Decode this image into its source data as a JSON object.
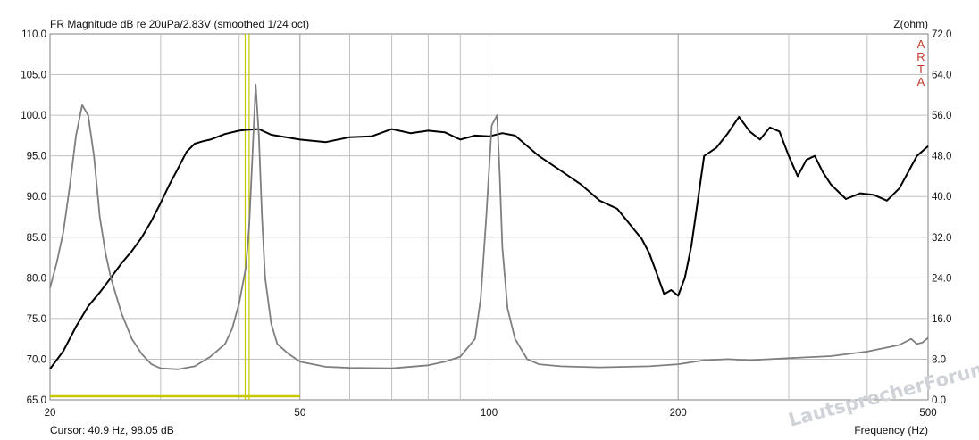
{
  "chart_data": {
    "type": "line",
    "title": "FR Magnitude dB re 20uPa/2.83V (smoothed 1/24 oct)",
    "xlabel": "Frequency (Hz)",
    "ylabel": "",
    "y2label": "Z(ohm)",
    "x_scale": "log",
    "xlim": [
      20,
      500
    ],
    "ylim": [
      65,
      110
    ],
    "y2lim": [
      0,
      72
    ],
    "grid": true,
    "x_ticks": [
      20,
      50,
      100,
      200,
      500
    ],
    "x_tick_labels": [
      "20",
      "50",
      "100",
      "200",
      "500"
    ],
    "x_minor_grid": [
      30,
      40,
      60,
      70,
      80,
      90,
      300,
      400
    ],
    "y_ticks": [
      65,
      70,
      75,
      80,
      85,
      90,
      95,
      100,
      105,
      110
    ],
    "y_tick_labels": [
      "65.0",
      "70.0",
      "75.0",
      "80.0",
      "85.0",
      "90.0",
      "95.0",
      "100.0",
      "105.0",
      "110.0"
    ],
    "y2_ticks": [
      0,
      8,
      16,
      24,
      32,
      40,
      48,
      56,
      64,
      72
    ],
    "y2_tick_labels": [
      "0.0",
      "8.0",
      "16.0",
      "24.0",
      "32.0",
      "40.0",
      "48.0",
      "56.0",
      "64.0",
      "72.0"
    ],
    "cursor_x": 40.9,
    "cursor_label": "Cursor: 40.9 Hz, 98.05 dB",
    "series": [
      {
        "axis": "left",
        "color": "#000000",
        "x": [
          20,
          21,
          22,
          23,
          24,
          25,
          26,
          27,
          28,
          29,
          30,
          31,
          32,
          33,
          34,
          35,
          36,
          38,
          40,
          41,
          43,
          45,
          50,
          55,
          60,
          65,
          70,
          75,
          80,
          85,
          90,
          95,
          100,
          105,
          110,
          120,
          130,
          140,
          150,
          160,
          170,
          175,
          180,
          185,
          190,
          195,
          200,
          205,
          210,
          220,
          230,
          240,
          250,
          260,
          270,
          280,
          290,
          300,
          310,
          320,
          330,
          340,
          350,
          370,
          390,
          410,
          430,
          450,
          480,
          500
        ],
        "y": [
          68.8,
          71.0,
          74.0,
          76.5,
          78.2,
          80.0,
          81.8,
          83.3,
          85.0,
          87.0,
          89.2,
          91.5,
          93.5,
          95.5,
          96.5,
          96.8,
          97.0,
          97.7,
          98.1,
          98.2,
          98.3,
          97.6,
          97.0,
          96.7,
          97.3,
          97.4,
          98.3,
          97.8,
          98.1,
          97.9,
          97.0,
          97.5,
          97.4,
          97.8,
          97.5,
          95.0,
          93.2,
          91.5,
          89.5,
          88.5,
          86.0,
          84.8,
          83.0,
          80.5,
          78.0,
          78.5,
          77.8,
          80.0,
          84.0,
          95.0,
          96.0,
          97.8,
          99.8,
          98.0,
          97.0,
          98.5,
          98.0,
          95.0,
          92.5,
          94.5,
          95.0,
          93.0,
          91.5,
          89.7,
          90.4,
          90.2,
          89.5,
          91.0,
          95.0,
          96.2
        ]
      },
      {
        "axis": "right",
        "color": "#7f7f7f",
        "x": [
          20,
          20.5,
          21,
          21.5,
          22,
          22.5,
          23,
          23.5,
          24,
          24.5,
          25,
          26,
          27,
          28,
          29,
          30,
          32,
          34,
          36,
          38,
          39,
          40,
          41,
          41.5,
          42,
          42.5,
          43,
          43.5,
          44,
          45,
          46,
          48,
          50,
          55,
          60,
          70,
          80,
          85,
          90,
          95,
          97,
          99,
          101,
          103,
          104,
          105,
          107,
          110,
          115,
          120,
          130,
          150,
          180,
          200,
          220,
          240,
          260,
          280,
          300,
          350,
          400,
          450,
          470,
          480,
          490,
          500
        ],
        "y": [
          22.0,
          27.0,
          33.0,
          42.0,
          52.0,
          58.0,
          56.0,
          48.0,
          36.0,
          29.0,
          24.0,
          17.0,
          12.0,
          9.0,
          7.0,
          6.2,
          6.0,
          6.6,
          8.5,
          11.0,
          14.0,
          19.0,
          26.0,
          34.0,
          48.0,
          62.0,
          52.0,
          36.0,
          24.0,
          15.0,
          11.0,
          9.0,
          7.5,
          6.5,
          6.3,
          6.2,
          6.8,
          7.5,
          8.5,
          12.0,
          20.0,
          36.0,
          54.0,
          56.0,
          44.0,
          30.0,
          18.0,
          12.0,
          8.0,
          7.0,
          6.6,
          6.4,
          6.6,
          7.0,
          7.8,
          8.0,
          7.8,
          8.0,
          8.2,
          8.6,
          9.5,
          10.8,
          12.0,
          11.0,
          11.3,
          12.2
        ]
      }
    ],
    "markers": [
      {
        "x": 40.9,
        "color": "#c8c800"
      },
      {
        "x": 41.5,
        "color": "#c8c800"
      }
    ]
  },
  "overlay": {
    "arta_letters": [
      "A",
      "R",
      "T",
      "A"
    ],
    "watermark": "LautsprecherForum.eu"
  },
  "colors": {
    "grid": "#c0c0c0",
    "axis": "#000000",
    "cursor": "#c8c800",
    "frame": "#808080"
  }
}
